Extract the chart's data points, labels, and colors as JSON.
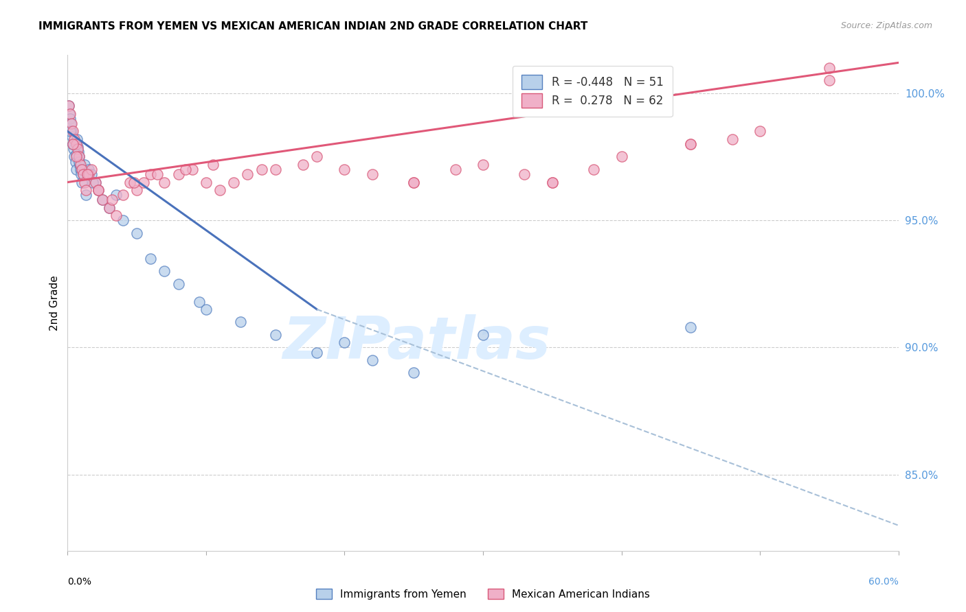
{
  "title": "IMMIGRANTS FROM YEMEN VS MEXICAN AMERICAN INDIAN 2ND GRADE CORRELATION CHART",
  "source": "Source: ZipAtlas.com",
  "ylabel": "2nd Grade",
  "x_min": 0.0,
  "x_max": 60.0,
  "y_min": 82.0,
  "y_max": 101.5,
  "y_ticks": [
    85.0,
    90.0,
    95.0,
    100.0
  ],
  "legend_blue_r": "R = -0.448",
  "legend_blue_n": "N = 51",
  "legend_pink_r": "R =  0.278",
  "legend_pink_n": "N = 62",
  "blue_fill": "#b8d0ea",
  "blue_edge": "#5580c0",
  "pink_fill": "#f0b0c8",
  "pink_edge": "#d85878",
  "blue_line_color": "#4a72bb",
  "pink_line_color": "#e05878",
  "dashed_color": "#a8c0d8",
  "watermark_color": "#ddeeff",
  "watermark_text": "ZIPatlas",
  "blue_solid_x0": 0.0,
  "blue_solid_y0": 98.5,
  "blue_solid_x1": 18.0,
  "blue_solid_y1": 91.5,
  "blue_dash_x0": 18.0,
  "blue_dash_y0": 91.5,
  "blue_dash_x1": 60.0,
  "blue_dash_y1": 83.0,
  "pink_x0": 0.0,
  "pink_y0": 96.5,
  "pink_x1": 60.0,
  "pink_y1": 101.2,
  "blue_scatter_x": [
    0.1,
    0.15,
    0.2,
    0.25,
    0.3,
    0.35,
    0.4,
    0.45,
    0.5,
    0.55,
    0.6,
    0.65,
    0.7,
    0.75,
    0.8,
    0.85,
    0.9,
    0.95,
    1.0,
    1.1,
    1.2,
    1.3,
    1.5,
    1.7,
    2.0,
    2.2,
    2.5,
    3.0,
    4.0,
    5.0,
    7.0,
    8.0,
    9.5,
    10.0,
    12.5,
    15.0,
    18.0,
    20.0,
    22.0,
    25.0,
    30.0,
    0.2,
    0.4,
    0.6,
    0.8,
    1.0,
    1.4,
    1.8,
    3.5,
    6.0,
    45.0
  ],
  "blue_scatter_y": [
    99.5,
    99.2,
    99.0,
    98.8,
    98.5,
    98.3,
    98.0,
    97.8,
    97.5,
    97.3,
    97.0,
    98.2,
    97.9,
    97.7,
    97.5,
    97.2,
    97.0,
    96.8,
    96.5,
    96.8,
    97.2,
    96.0,
    97.0,
    96.8,
    96.5,
    96.2,
    95.8,
    95.5,
    95.0,
    94.5,
    93.0,
    92.5,
    91.8,
    91.5,
    91.0,
    90.5,
    89.8,
    90.2,
    89.5,
    89.0,
    90.5,
    98.5,
    98.0,
    97.6,
    97.3,
    97.0,
    96.8,
    96.5,
    96.0,
    93.5,
    90.8
  ],
  "pink_scatter_x": [
    0.1,
    0.2,
    0.3,
    0.4,
    0.5,
    0.6,
    0.7,
    0.8,
    0.9,
    1.0,
    1.1,
    1.2,
    1.3,
    1.5,
    1.7,
    2.0,
    2.2,
    2.5,
    3.0,
    3.5,
    4.0,
    4.5,
    5.0,
    5.5,
    6.0,
    7.0,
    8.0,
    9.0,
    10.0,
    11.0,
    12.0,
    13.0,
    15.0,
    17.0,
    20.0,
    22.0,
    25.0,
    28.0,
    30.0,
    33.0,
    35.0,
    38.0,
    40.0,
    45.0,
    48.0,
    50.0,
    55.0,
    0.4,
    0.6,
    1.4,
    2.2,
    3.2,
    4.8,
    6.5,
    8.5,
    10.5,
    14.0,
    18.0,
    25.0,
    35.0,
    45.0,
    55.0
  ],
  "pink_scatter_y": [
    99.5,
    99.2,
    98.8,
    98.5,
    98.2,
    98.0,
    97.8,
    97.5,
    97.2,
    97.0,
    96.8,
    96.5,
    96.2,
    96.8,
    97.0,
    96.5,
    96.2,
    95.8,
    95.5,
    95.2,
    96.0,
    96.5,
    96.2,
    96.5,
    96.8,
    96.5,
    96.8,
    97.0,
    96.5,
    96.2,
    96.5,
    96.8,
    97.0,
    97.2,
    97.0,
    96.8,
    96.5,
    97.0,
    97.2,
    96.8,
    96.5,
    97.0,
    97.5,
    98.0,
    98.2,
    98.5,
    100.5,
    98.0,
    97.5,
    96.8,
    96.2,
    95.8,
    96.5,
    96.8,
    97.0,
    97.2,
    97.0,
    97.5,
    96.5,
    96.5,
    98.0,
    101.0
  ]
}
